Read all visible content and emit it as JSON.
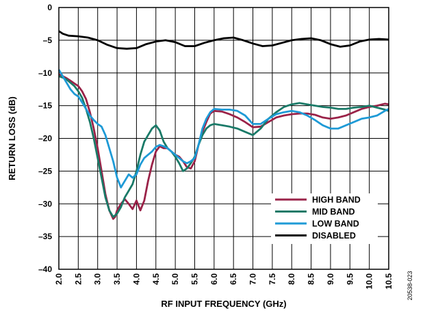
{
  "chart_data": {
    "type": "line",
    "xlabel": "RF INPUT FREQUENCY (GHz)",
    "ylabel": "RETURN LOSS (dB)",
    "xlim": [
      2.0,
      10.5
    ],
    "ylim": [
      -40,
      0
    ],
    "x_ticks": [
      "2.0",
      "2.5",
      "3.0",
      "3.5",
      "4.0",
      "4.5",
      "5.0",
      "5.5",
      "6.0",
      "6.5",
      "7.0",
      "7.5",
      "8.0",
      "8.5",
      "9.0",
      "9.5",
      "10.0",
      "10.5"
    ],
    "y_ticks": [
      "0",
      "–5",
      "–10",
      "–15",
      "–20",
      "–25",
      "–30",
      "–35",
      "–40"
    ],
    "grid": true,
    "legend_position": "bottom-right",
    "figure_id": "20538-023",
    "series": [
      {
        "name": "HIGH BAND",
        "color": "#9a2248",
        "points": [
          [
            2.0,
            -10.2
          ],
          [
            2.1,
            -10.5
          ],
          [
            2.2,
            -10.8
          ],
          [
            2.3,
            -11.2
          ],
          [
            2.4,
            -11.6
          ],
          [
            2.5,
            -12.0
          ],
          [
            2.6,
            -12.8
          ],
          [
            2.7,
            -14.0
          ],
          [
            2.8,
            -16.0
          ],
          [
            2.9,
            -18.5
          ],
          [
            3.0,
            -21.5
          ],
          [
            3.1,
            -25.0
          ],
          [
            3.2,
            -28.5
          ],
          [
            3.3,
            -31.0
          ],
          [
            3.4,
            -32.3
          ],
          [
            3.45,
            -32.0
          ],
          [
            3.5,
            -31.0
          ],
          [
            3.6,
            -30.0
          ],
          [
            3.7,
            -29.3
          ],
          [
            3.8,
            -30.0
          ],
          [
            3.9,
            -30.8
          ],
          [
            4.0,
            -29.5
          ],
          [
            4.1,
            -31.0
          ],
          [
            4.2,
            -29.5
          ],
          [
            4.3,
            -26.5
          ],
          [
            4.4,
            -24.0
          ],
          [
            4.5,
            -22.0
          ],
          [
            4.6,
            -21.2
          ],
          [
            4.7,
            -21.5
          ],
          [
            4.8,
            -21.5
          ],
          [
            4.9,
            -22.0
          ],
          [
            5.0,
            -22.5
          ],
          [
            5.1,
            -22.8
          ],
          [
            5.2,
            -23.5
          ],
          [
            5.3,
            -24.4
          ],
          [
            5.4,
            -24.6
          ],
          [
            5.5,
            -23.5
          ],
          [
            5.6,
            -21.0
          ],
          [
            5.7,
            -19.0
          ],
          [
            5.8,
            -17.5
          ],
          [
            5.9,
            -16.2
          ],
          [
            6.0,
            -15.8
          ],
          [
            6.2,
            -15.9
          ],
          [
            6.4,
            -16.3
          ],
          [
            6.6,
            -16.8
          ],
          [
            6.8,
            -17.5
          ],
          [
            7.0,
            -18.3
          ],
          [
            7.2,
            -18.2
          ],
          [
            7.4,
            -17.5
          ],
          [
            7.6,
            -16.8
          ],
          [
            7.8,
            -16.5
          ],
          [
            8.0,
            -16.3
          ],
          [
            8.2,
            -16.2
          ],
          [
            8.4,
            -16.2
          ],
          [
            8.6,
            -16.4
          ],
          [
            8.8,
            -16.8
          ],
          [
            9.0,
            -17.0
          ],
          [
            9.2,
            -16.8
          ],
          [
            9.4,
            -16.5
          ],
          [
            9.6,
            -16.0
          ],
          [
            9.8,
            -15.5
          ],
          [
            10.0,
            -15.2
          ],
          [
            10.2,
            -15.0
          ],
          [
            10.4,
            -14.7
          ],
          [
            10.5,
            -14.8
          ]
        ]
      },
      {
        "name": "MID BAND",
        "color": "#1a7a68",
        "points": [
          [
            2.0,
            -10.5
          ],
          [
            2.1,
            -10.7
          ],
          [
            2.2,
            -11.0
          ],
          [
            2.3,
            -11.5
          ],
          [
            2.4,
            -12.0
          ],
          [
            2.5,
            -12.8
          ],
          [
            2.6,
            -13.8
          ],
          [
            2.7,
            -15.5
          ],
          [
            2.8,
            -17.5
          ],
          [
            2.9,
            -20.0
          ],
          [
            3.0,
            -23.0
          ],
          [
            3.1,
            -26.0
          ],
          [
            3.2,
            -29.0
          ],
          [
            3.3,
            -31.0
          ],
          [
            3.4,
            -32.0
          ],
          [
            3.5,
            -31.5
          ],
          [
            3.6,
            -30.5
          ],
          [
            3.7,
            -29.0
          ],
          [
            3.8,
            -28.0
          ],
          [
            3.9,
            -27.0
          ],
          [
            4.0,
            -25.0
          ],
          [
            4.1,
            -22.5
          ],
          [
            4.2,
            -20.5
          ],
          [
            4.3,
            -19.5
          ],
          [
            4.4,
            -18.5
          ],
          [
            4.5,
            -18.0
          ],
          [
            4.6,
            -18.8
          ],
          [
            4.7,
            -20.5
          ],
          [
            4.8,
            -21.5
          ],
          [
            4.9,
            -22.0
          ],
          [
            5.0,
            -22.8
          ],
          [
            5.1,
            -23.8
          ],
          [
            5.2,
            -25.0
          ],
          [
            5.3,
            -24.6
          ],
          [
            5.4,
            -23.8
          ],
          [
            5.5,
            -22.8
          ],
          [
            5.6,
            -21.0
          ],
          [
            5.7,
            -19.5
          ],
          [
            5.8,
            -18.5
          ],
          [
            5.9,
            -18.0
          ],
          [
            6.0,
            -17.8
          ],
          [
            6.2,
            -18.0
          ],
          [
            6.4,
            -18.2
          ],
          [
            6.6,
            -18.5
          ],
          [
            6.8,
            -19.0
          ],
          [
            7.0,
            -19.5
          ],
          [
            7.2,
            -18.5
          ],
          [
            7.4,
            -17.0
          ],
          [
            7.6,
            -16.0
          ],
          [
            7.8,
            -15.2
          ],
          [
            8.0,
            -14.8
          ],
          [
            8.2,
            -14.6
          ],
          [
            8.4,
            -14.8
          ],
          [
            8.6,
            -15.0
          ],
          [
            8.8,
            -15.2
          ],
          [
            9.0,
            -15.3
          ],
          [
            9.2,
            -15.5
          ],
          [
            9.4,
            -15.5
          ],
          [
            9.6,
            -15.3
          ],
          [
            9.8,
            -15.2
          ],
          [
            10.0,
            -15.0
          ],
          [
            10.2,
            -15.3
          ],
          [
            10.4,
            -15.6
          ],
          [
            10.5,
            -15.8
          ]
        ]
      },
      {
        "name": "LOW BAND",
        "color": "#1e9ad6",
        "points": [
          [
            2.0,
            -9.5
          ],
          [
            2.1,
            -10.5
          ],
          [
            2.2,
            -11.5
          ],
          [
            2.3,
            -12.5
          ],
          [
            2.4,
            -13.2
          ],
          [
            2.5,
            -13.6
          ],
          [
            2.6,
            -14.5
          ],
          [
            2.7,
            -15.5
          ],
          [
            2.8,
            -16.5
          ],
          [
            2.9,
            -17.2
          ],
          [
            3.0,
            -17.8
          ],
          [
            3.1,
            -18.2
          ],
          [
            3.2,
            -19.5
          ],
          [
            3.3,
            -21.5
          ],
          [
            3.4,
            -23.5
          ],
          [
            3.5,
            -26.0
          ],
          [
            3.6,
            -27.5
          ],
          [
            3.7,
            -26.5
          ],
          [
            3.8,
            -25.5
          ],
          [
            3.9,
            -26.0
          ],
          [
            4.0,
            -25.5
          ],
          [
            4.1,
            -24.0
          ],
          [
            4.2,
            -23.0
          ],
          [
            4.3,
            -22.5
          ],
          [
            4.4,
            -22.0
          ],
          [
            4.5,
            -21.3
          ],
          [
            4.6,
            -21.0
          ],
          [
            4.7,
            -21.2
          ],
          [
            4.8,
            -21.5
          ],
          [
            4.9,
            -22.0
          ],
          [
            5.0,
            -22.5
          ],
          [
            5.1,
            -23.0
          ],
          [
            5.2,
            -23.5
          ],
          [
            5.3,
            -23.8
          ],
          [
            5.4,
            -23.5
          ],
          [
            5.5,
            -23.0
          ],
          [
            5.6,
            -21.0
          ],
          [
            5.7,
            -18.5
          ],
          [
            5.8,
            -17.0
          ],
          [
            5.9,
            -16.0
          ],
          [
            6.0,
            -15.5
          ],
          [
            6.2,
            -15.6
          ],
          [
            6.4,
            -15.6
          ],
          [
            6.6,
            -15.8
          ],
          [
            6.8,
            -16.5
          ],
          [
            7.0,
            -17.8
          ],
          [
            7.2,
            -17.8
          ],
          [
            7.4,
            -17.0
          ],
          [
            7.6,
            -16.3
          ],
          [
            7.8,
            -16.0
          ],
          [
            8.0,
            -15.8
          ],
          [
            8.2,
            -16.0
          ],
          [
            8.4,
            -16.5
          ],
          [
            8.6,
            -17.2
          ],
          [
            8.8,
            -18.0
          ],
          [
            9.0,
            -18.5
          ],
          [
            9.2,
            -18.5
          ],
          [
            9.4,
            -18.0
          ],
          [
            9.6,
            -17.5
          ],
          [
            9.8,
            -17.0
          ],
          [
            10.0,
            -16.8
          ],
          [
            10.2,
            -16.5
          ],
          [
            10.4,
            -15.8
          ],
          [
            10.5,
            -15.5
          ]
        ]
      },
      {
        "name": "DISABLED",
        "color": "#000000",
        "points": [
          [
            2.0,
            -3.6
          ],
          [
            2.1,
            -4.0
          ],
          [
            2.25,
            -4.3
          ],
          [
            2.5,
            -4.4
          ],
          [
            2.75,
            -4.6
          ],
          [
            3.0,
            -5.0
          ],
          [
            3.25,
            -5.7
          ],
          [
            3.5,
            -6.2
          ],
          [
            3.75,
            -6.3
          ],
          [
            4.0,
            -6.2
          ],
          [
            4.25,
            -5.6
          ],
          [
            4.5,
            -5.2
          ],
          [
            4.75,
            -5.0
          ],
          [
            5.0,
            -5.3
          ],
          [
            5.25,
            -5.9
          ],
          [
            5.5,
            -5.9
          ],
          [
            5.75,
            -5.4
          ],
          [
            6.0,
            -5.0
          ],
          [
            6.25,
            -4.7
          ],
          [
            6.5,
            -4.6
          ],
          [
            6.75,
            -5.0
          ],
          [
            7.0,
            -5.5
          ],
          [
            7.25,
            -5.9
          ],
          [
            7.5,
            -5.8
          ],
          [
            7.75,
            -5.4
          ],
          [
            8.0,
            -5.0
          ],
          [
            8.25,
            -4.8
          ],
          [
            8.5,
            -4.7
          ],
          [
            8.75,
            -5.0
          ],
          [
            9.0,
            -5.6
          ],
          [
            9.25,
            -6.0
          ],
          [
            9.5,
            -5.8
          ],
          [
            9.75,
            -5.2
          ],
          [
            10.0,
            -4.9
          ],
          [
            10.25,
            -4.8
          ],
          [
            10.5,
            -4.9
          ]
        ]
      }
    ]
  }
}
